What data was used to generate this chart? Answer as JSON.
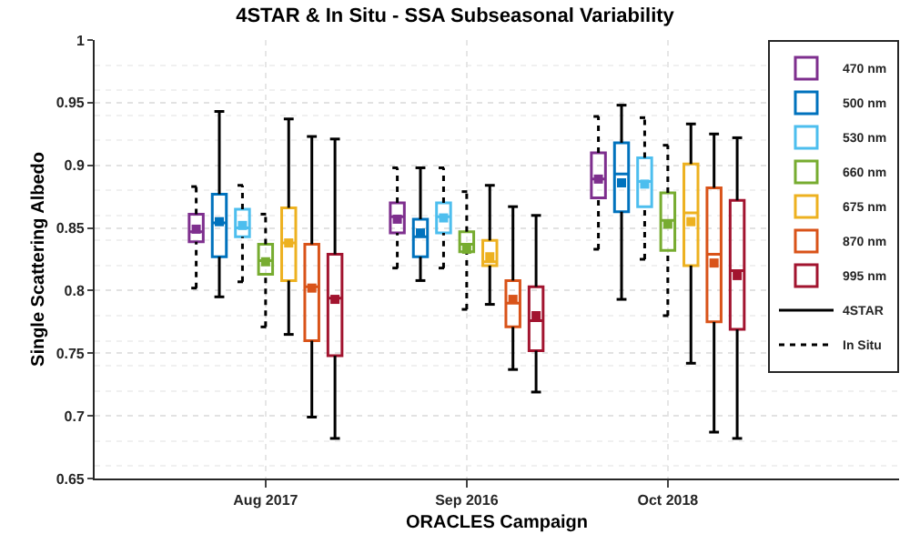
{
  "chart_data": {
    "type": "box",
    "title": "4STAR & In Situ - SSA Subseasonal Variability",
    "xlabel": "ORACLES Campaign",
    "ylabel": "Single Scattering Albedo",
    "categories": [
      "Aug 2017",
      "Sep 2016",
      "Oct 2018"
    ],
    "ylim": [
      0.65,
      1
    ],
    "yticks": [
      0.65,
      0.7,
      0.75,
      0.8,
      0.85,
      0.9,
      0.95,
      1
    ],
    "grid": true,
    "legend": "top right",
    "marker": "square",
    "series": [
      {
        "name": "470 nm",
        "color": "#7e2f8e",
        "line_style": "dotted",
        "boxes": [
          {
            "low": 0.802,
            "q1": 0.839,
            "median": 0.847,
            "q3": 0.861,
            "high": 0.883,
            "mean": 0.849
          },
          {
            "low": 0.818,
            "q1": 0.846,
            "median": 0.859,
            "q3": 0.87,
            "high": 0.898,
            "mean": 0.857
          },
          {
            "low": 0.833,
            "q1": 0.874,
            "median": 0.889,
            "q3": 0.91,
            "high": 0.939,
            "mean": 0.889
          }
        ]
      },
      {
        "name": "500 nm",
        "color": "#0072bd",
        "line_style": "solid",
        "boxes": [
          {
            "low": 0.795,
            "q1": 0.827,
            "median": 0.854,
            "q3": 0.877,
            "high": 0.943,
            "mean": 0.855
          },
          {
            "low": 0.808,
            "q1": 0.827,
            "median": 0.843,
            "q3": 0.857,
            "high": 0.898,
            "mean": 0.846
          },
          {
            "low": 0.793,
            "q1": 0.863,
            "median": 0.893,
            "q3": 0.918,
            "high": 0.948,
            "mean": 0.886
          }
        ]
      },
      {
        "name": "530 nm",
        "color": "#4dbeee",
        "line_style": "dotted",
        "boxes": [
          {
            "low": 0.807,
            "q1": 0.843,
            "median": 0.85,
            "q3": 0.865,
            "high": 0.884,
            "mean": 0.852
          },
          {
            "low": 0.818,
            "q1": 0.846,
            "median": 0.859,
            "q3": 0.87,
            "high": 0.898,
            "mean": 0.858
          },
          {
            "low": 0.825,
            "q1": 0.867,
            "median": 0.887,
            "q3": 0.906,
            "high": 0.938,
            "mean": 0.885
          }
        ]
      },
      {
        "name": "660 nm",
        "color": "#77ac30",
        "line_style": "dotted",
        "boxes": [
          {
            "low": 0.771,
            "q1": 0.813,
            "median": 0.824,
            "q3": 0.837,
            "high": 0.861,
            "mean": 0.823
          },
          {
            "low": 0.785,
            "q1": 0.831,
            "median": 0.837,
            "q3": 0.847,
            "high": 0.879,
            "mean": 0.833
          },
          {
            "low": 0.78,
            "q1": 0.832,
            "median": 0.856,
            "q3": 0.878,
            "high": 0.916,
            "mean": 0.853
          }
        ]
      },
      {
        "name": "675 nm",
        "color": "#edb120",
        "line_style": "solid",
        "boxes": [
          {
            "low": 0.765,
            "q1": 0.808,
            "median": 0.838,
            "q3": 0.866,
            "high": 0.937,
            "mean": 0.838
          },
          {
            "low": 0.789,
            "q1": 0.82,
            "median": 0.823,
            "q3": 0.84,
            "high": 0.884,
            "mean": 0.827
          },
          {
            "low": 0.742,
            "q1": 0.82,
            "median": 0.862,
            "q3": 0.901,
            "high": 0.933,
            "mean": 0.855
          }
        ]
      },
      {
        "name": "870 nm",
        "color": "#d95319",
        "line_style": "solid",
        "boxes": [
          {
            "low": 0.699,
            "q1": 0.76,
            "median": 0.803,
            "q3": 0.837,
            "high": 0.923,
            "mean": 0.802
          },
          {
            "low": 0.737,
            "q1": 0.771,
            "median": 0.79,
            "q3": 0.808,
            "high": 0.867,
            "mean": 0.793
          },
          {
            "low": 0.687,
            "q1": 0.775,
            "median": 0.829,
            "q3": 0.882,
            "high": 0.925,
            "mean": 0.822
          }
        ]
      },
      {
        "name": "995 nm",
        "color": "#a2142f",
        "line_style": "solid",
        "boxes": [
          {
            "low": 0.682,
            "q1": 0.748,
            "median": 0.794,
            "q3": 0.829,
            "high": 0.921,
            "mean": 0.793
          },
          {
            "low": 0.719,
            "q1": 0.752,
            "median": 0.776,
            "q3": 0.803,
            "high": 0.86,
            "mean": 0.78
          },
          {
            "low": 0.682,
            "q1": 0.769,
            "median": 0.816,
            "q3": 0.872,
            "high": 0.922,
            "mean": 0.812
          }
        ]
      },
      {
        "name": "4STAR",
        "type": "line",
        "color": "#000000",
        "line_style": "solid",
        "values": [
          null,
          null,
          null
        ]
      },
      {
        "name": "In Situ",
        "type": "line",
        "color": "#000000",
        "line_style": "dotted",
        "values": [
          null,
          null,
          null
        ]
      }
    ]
  }
}
